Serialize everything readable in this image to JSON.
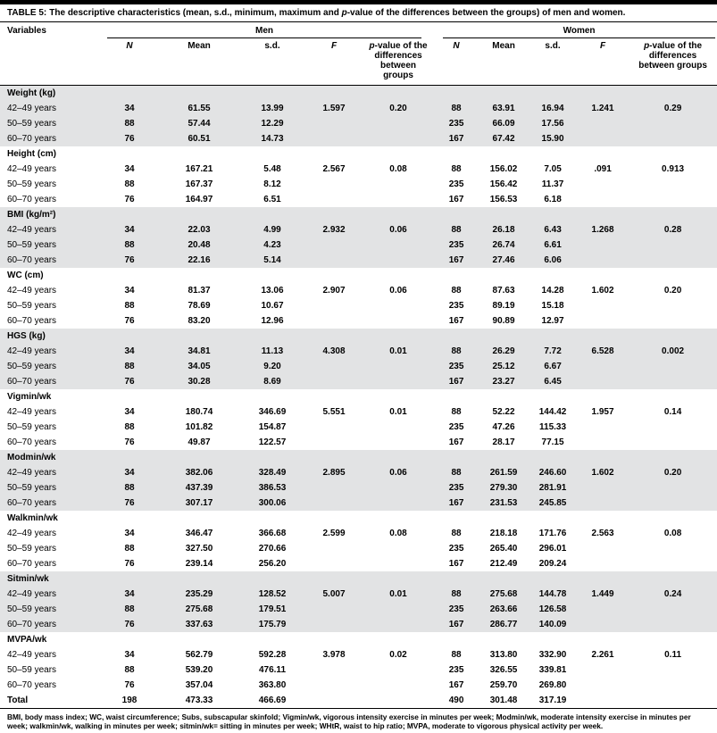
{
  "caption": {
    "label": "TABLE 5:",
    "pre": "The descriptive characteristics (mean, s.d., minimum, maximum and ",
    "p_italic": "p",
    "post": "-value of the differences between the groups) of men and women."
  },
  "header": {
    "variables": "Variables",
    "men": "Men",
    "women": "Women",
    "sub": {
      "n": "N",
      "mean": "Mean",
      "sd": "s.d.",
      "f": "F",
      "p_prefix": "p",
      "p_rest": "-value of the differences between groups"
    }
  },
  "table": {
    "groups": [
      {
        "name": "Weight (kg)",
        "rows": [
          {
            "label": "42–49 years",
            "men": [
              "34",
              "61.55",
              "13.99",
              "1.597",
              "0.20"
            ],
            "women": [
              "88",
              "63.91",
              "16.94",
              "1.241",
              "0.29"
            ]
          },
          {
            "label": "50–59 years",
            "men": [
              "88",
              "57.44",
              "12.29",
              "",
              ""
            ],
            "women": [
              "235",
              "66.09",
              "17.56",
              "",
              ""
            ]
          },
          {
            "label": "60–70 years",
            "men": [
              "76",
              "60.51",
              "14.73",
              "",
              ""
            ],
            "women": [
              "167",
              "67.42",
              "15.90",
              "",
              ""
            ]
          }
        ]
      },
      {
        "name": "Height (cm)",
        "rows": [
          {
            "label": "42–49 years",
            "men": [
              "34",
              "167.21",
              "5.48",
              "2.567",
              "0.08"
            ],
            "women": [
              "88",
              "156.02",
              "7.05",
              ".091",
              "0.913"
            ]
          },
          {
            "label": "50–59 years",
            "men": [
              "88",
              "167.37",
              "8.12",
              "",
              ""
            ],
            "women": [
              "235",
              "156.42",
              "11.37",
              "",
              ""
            ]
          },
          {
            "label": "60–70 years",
            "men": [
              "76",
              "164.97",
              "6.51",
              "",
              ""
            ],
            "women": [
              "167",
              "156.53",
              "6.18",
              "",
              ""
            ]
          }
        ]
      },
      {
        "name": "BMI (kg/m²)",
        "rows": [
          {
            "label": "42–49 years",
            "men": [
              "34",
              "22.03",
              "4.99",
              "2.932",
              "0.06"
            ],
            "women": [
              "88",
              "26.18",
              "6.43",
              "1.268",
              "0.28"
            ]
          },
          {
            "label": "50–59 years",
            "men": [
              "88",
              "20.48",
              "4.23",
              "",
              ""
            ],
            "women": [
              "235",
              "26.74",
              "6.61",
              "",
              ""
            ]
          },
          {
            "label": "60–70 years",
            "men": [
              "76",
              "22.16",
              "5.14",
              "",
              ""
            ],
            "women": [
              "167",
              "27.46",
              "6.06",
              "",
              ""
            ]
          }
        ]
      },
      {
        "name": "WC (cm)",
        "rows": [
          {
            "label": "42–49 years",
            "men": [
              "34",
              "81.37",
              "13.06",
              "2.907",
              "0.06"
            ],
            "women": [
              "88",
              "87.63",
              "14.28",
              "1.602",
              "0.20"
            ]
          },
          {
            "label": "50–59 years",
            "men": [
              "88",
              "78.69",
              "10.67",
              "",
              ""
            ],
            "women": [
              "235",
              "89.19",
              "15.18",
              "",
              ""
            ]
          },
          {
            "label": "60–70 years",
            "men": [
              "76",
              "83.20",
              "12.96",
              "",
              ""
            ],
            "women": [
              "167",
              "90.89",
              "12.97",
              "",
              ""
            ]
          }
        ]
      },
      {
        "name": "HGS (kg)",
        "rows": [
          {
            "label": "42–49 years",
            "men": [
              "34",
              "34.81",
              "11.13",
              "4.308",
              "0.01"
            ],
            "women": [
              "88",
              "26.29",
              "7.72",
              "6.528",
              "0.002"
            ]
          },
          {
            "label": "50–59 years",
            "men": [
              "88",
              "34.05",
              "9.20",
              "",
              ""
            ],
            "women": [
              "235",
              "25.12",
              "6.67",
              "",
              ""
            ]
          },
          {
            "label": "60–70 years",
            "men": [
              "76",
              "30.28",
              "8.69",
              "",
              ""
            ],
            "women": [
              "167",
              "23.27",
              "6.45",
              "",
              ""
            ]
          }
        ]
      },
      {
        "name": "Vigmin/wk",
        "rows": [
          {
            "label": "42–49 years",
            "men": [
              "34",
              "180.74",
              "346.69",
              "5.551",
              "0.01"
            ],
            "women": [
              "88",
              "52.22",
              "144.42",
              "1.957",
              "0.14"
            ]
          },
          {
            "label": "50–59 years",
            "men": [
              "88",
              "101.82",
              "154.87",
              "",
              ""
            ],
            "women": [
              "235",
              "47.26",
              "115.33",
              "",
              ""
            ]
          },
          {
            "label": "60–70 years",
            "men": [
              "76",
              "49.87",
              "122.57",
              "",
              ""
            ],
            "women": [
              "167",
              "28.17",
              "77.15",
              "",
              ""
            ]
          }
        ]
      },
      {
        "name": "Modmin/wk",
        "rows": [
          {
            "label": "42–49 years",
            "men": [
              "34",
              "382.06",
              "328.49",
              "2.895",
              "0.06"
            ],
            "women": [
              "88",
              "261.59",
              "246.60",
              "1.602",
              "0.20"
            ]
          },
          {
            "label": "50–59 years",
            "men": [
              "88",
              "437.39",
              "386.53",
              "",
              ""
            ],
            "women": [
              "235",
              "279.30",
              "281.91",
              "",
              ""
            ]
          },
          {
            "label": "60–70 years",
            "men": [
              "76",
              "307.17",
              "300.06",
              "",
              ""
            ],
            "women": [
              "167",
              "231.53",
              "245.85",
              "",
              ""
            ]
          }
        ]
      },
      {
        "name": "Walkmin/wk",
        "rows": [
          {
            "label": "42–49 years",
            "men": [
              "34",
              "346.47",
              "366.68",
              "2.599",
              "0.08"
            ],
            "women": [
              "88",
              "218.18",
              "171.76",
              "2.563",
              "0.08"
            ]
          },
          {
            "label": "50–59 years",
            "men": [
              "88",
              "327.50",
              "270.66",
              "",
              ""
            ],
            "women": [
              "235",
              "265.40",
              "296.01",
              "",
              ""
            ]
          },
          {
            "label": "60–70 years",
            "men": [
              "76",
              "239.14",
              "256.20",
              "",
              ""
            ],
            "women": [
              "167",
              "212.49",
              "209.24",
              "",
              ""
            ]
          }
        ]
      },
      {
        "name": "Sitmin/wk",
        "rows": [
          {
            "label": "42–49 years",
            "men": [
              "34",
              "235.29",
              "128.52",
              "5.007",
              "0.01"
            ],
            "women": [
              "88",
              "275.68",
              "144.78",
              "1.449",
              "0.24"
            ]
          },
          {
            "label": "50–59 years",
            "men": [
              "88",
              "275.68",
              "179.51",
              "",
              ""
            ],
            "women": [
              "235",
              "263.66",
              "126.58",
              "",
              ""
            ]
          },
          {
            "label": "60–70 years",
            "men": [
              "76",
              "337.63",
              "175.79",
              "",
              ""
            ],
            "women": [
              "167",
              "286.77",
              "140.09",
              "",
              ""
            ]
          }
        ]
      },
      {
        "name": "MVPA/wk",
        "rows": [
          {
            "label": "42–49 years",
            "men": [
              "34",
              "562.79",
              "592.28",
              "3.978",
              "0.02"
            ],
            "women": [
              "88",
              "313.80",
              "332.90",
              "2.261",
              "0.11"
            ]
          },
          {
            "label": "50–59 years",
            "men": [
              "88",
              "539.20",
              "476.11",
              "",
              ""
            ],
            "women": [
              "235",
              "326.55",
              "339.81",
              "",
              ""
            ]
          },
          {
            "label": "60–70 years",
            "men": [
              "76",
              "357.04",
              "363.80",
              "",
              ""
            ],
            "women": [
              "167",
              "259.70",
              "269.80",
              "",
              ""
            ]
          },
          {
            "label": "Total",
            "bold": true,
            "men": [
              "198",
              "473.33",
              "466.69",
              "",
              ""
            ],
            "women": [
              "490",
              "301.48",
              "317.19",
              "",
              ""
            ]
          }
        ]
      }
    ]
  },
  "footnote": "BMI, body mass index; WC, waist circumference; Subs, subscapular skinfold; Vigmin/wk, vigorous intensity exercise in minutes per week; Modmin/wk, moderate intensity exercise in minutes per week; walkmin/wk, walking in minutes per week; sitmin/wk= sitting in minutes per week; WHtR, waist to hip ratio; MVPA, moderate to vigorous physical activity per week."
}
